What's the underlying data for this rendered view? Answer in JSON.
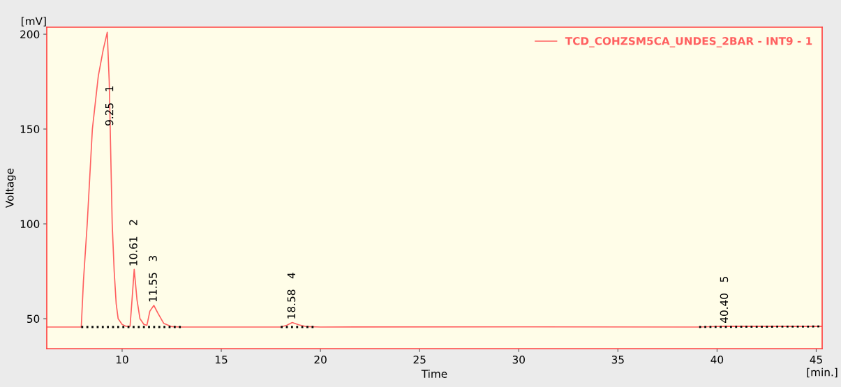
{
  "chart_data": {
    "type": "line",
    "xlabel": "Time",
    "ylabel": "Voltage",
    "xlim": [
      6.2,
      45.3
    ],
    "ylim": [
      34.2,
      203.7
    ],
    "xticks": [
      10,
      15,
      20,
      25,
      30,
      35,
      40,
      45
    ],
    "yticks": [
      50,
      100,
      150,
      200
    ],
    "grid": false,
    "legend": "top right",
    "marker": "none",
    "series": [
      {
        "name": "TCD_COHZSM5CA_UNDES_2BAR - INT9 - 1",
        "color": "#ff6060",
        "line_style": "solid",
        "x": [
          6.2,
          7.94,
          8.05,
          8.24,
          8.5,
          8.8,
          9.05,
          9.25,
          9.35,
          9.4,
          9.5,
          9.6,
          9.7,
          9.8,
          10.0,
          10.2,
          10.4,
          10.5,
          10.61,
          10.75,
          10.9,
          11.1,
          11.25,
          11.4,
          11.6,
          11.8,
          12.1,
          12.5,
          13.0,
          18.0,
          18.3,
          18.58,
          18.9,
          19.3,
          20.0,
          30.0,
          39.0,
          40.4,
          45.3
        ],
        "values": [
          45.6,
          45.6,
          70,
          100,
          150,
          178,
          192,
          201,
          175,
          150,
          100,
          75,
          58,
          50,
          47,
          46,
          46,
          60,
          76,
          60,
          50,
          47,
          46.5,
          54,
          57,
          53,
          47.5,
          45.8,
          45.6,
          45.6,
          46.5,
          48,
          46.8,
          45.8,
          45.6,
          45.7,
          45.6,
          46,
          45.9
        ]
      },
      {
        "color": "#000000",
        "line_style": "dotted",
        "x": [
          7.94,
          13.0,
          13.01,
          18.0,
          19.8,
          19.81,
          39.1,
          45.3
        ],
        "values": [
          45.6,
          45.6,
          null,
          45.6,
          45.6,
          null,
          45.6,
          45.9
        ]
      }
    ],
    "annotations": [
      "[mV]",
      "[min.]",
      {
        "text": "9.25   1",
        "x": 9.4,
        "y": 150
      },
      {
        "text": "10.61   2",
        "x": 10.61,
        "y": 76
      },
      {
        "text": "11.55   3",
        "x": 11.6,
        "y": 57
      },
      {
        "text": "18.58   4",
        "x": 18.58,
        "y": 48
      },
      {
        "text": "40.40   5",
        "x": 40.4,
        "y": 46
      }
    ]
  }
}
